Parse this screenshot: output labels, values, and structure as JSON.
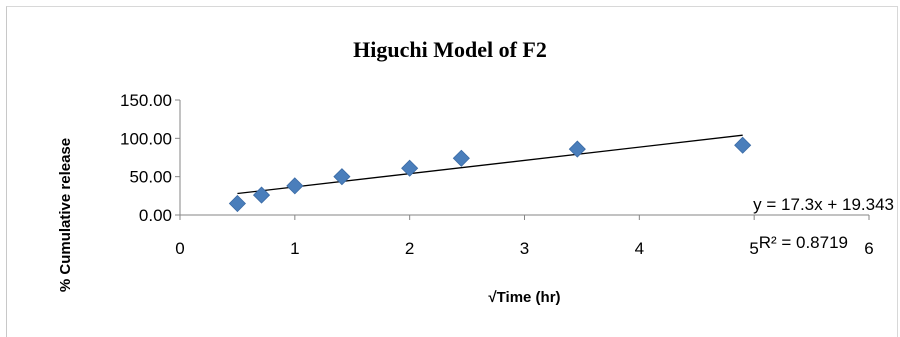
{
  "chart_data": {
    "type": "scatter",
    "title": "Higuchi Model of F2",
    "xlabel": "√Time (hr)",
    "ylabel": "% Cumulative release",
    "xlim": [
      0,
      6
    ],
    "ylim": [
      0,
      150
    ],
    "x_ticks": [
      "0",
      "1",
      "2",
      "3",
      "4",
      "5",
      "6"
    ],
    "y_ticks": [
      "0.00",
      "50.00",
      "100.00",
      "150.00"
    ],
    "grid": false,
    "marker": "diamond",
    "marker_color": "#4a7ebb",
    "series": [
      {
        "points": [
          {
            "x": 0.5,
            "y": 15
          },
          {
            "x": 0.71,
            "y": 26
          },
          {
            "x": 1.0,
            "y": 38
          },
          {
            "x": 1.41,
            "y": 50
          },
          {
            "x": 2.0,
            "y": 61
          },
          {
            "x": 2.45,
            "y": 74
          },
          {
            "x": 3.46,
            "y": 86
          },
          {
            "x": 4.9,
            "y": 91
          }
        ]
      }
    ],
    "trendline": {
      "slope": 17.3,
      "intercept": 19.343,
      "x_range": [
        0.5,
        4.9
      ],
      "color": "#000000",
      "equation": "y = 17.3x + 19.343",
      "r_squared": "R² = 0.8719"
    }
  }
}
